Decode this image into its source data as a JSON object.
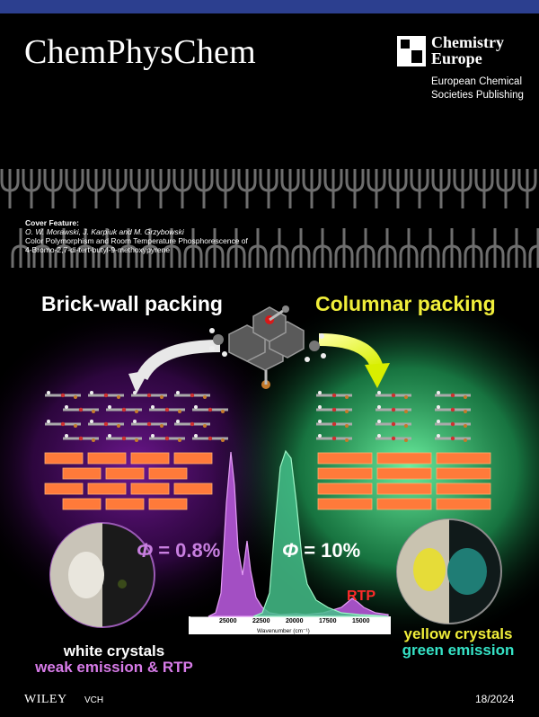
{
  "journal": {
    "title": "ChemPhysChem"
  },
  "publisher_logo": {
    "name_line1": "Chemistry",
    "name_line2": "Europe",
    "sub_line1": "European Chemical",
    "sub_line2": "Societies Publishing"
  },
  "cover": {
    "label": "Cover Feature:",
    "authors": "O. W. Morawski, J. Karpiuk and M. Grzybowski",
    "title_line1": "Color Polymorphism and Room Temperature Phosphorescence of",
    "title_line2": "4-Bromo-2,7-di-tert-butyl-9-methoxypyrene"
  },
  "figure": {
    "left_heading": "Brick-wall packing",
    "right_heading": "Columnar packing",
    "phi_left_value": " = 0.8%",
    "phi_right_value": " = 10%",
    "phi_symbol": "Φ",
    "rtp_label": "RTP",
    "spectrum_ticks": [
      "25000",
      "22500",
      "20000",
      "17500",
      "15000"
    ],
    "spectrum_xlabel": "Wavenumber (cm⁻¹)",
    "left_caption_line1": "white crystals",
    "left_caption_line2": "weak emission & RTP",
    "right_caption_line1": "yellow crystals",
    "right_caption_line2": "green emission"
  },
  "footer": {
    "publisher": "WILEY",
    "imprint": "VCH",
    "issue": "18/2024"
  },
  "colors": {
    "topbar": "#2c3f8f",
    "yellow": "#f0ee3a",
    "purple": "#c87fe0",
    "teal": "#35e2c6",
    "rtp_red": "#ff2a2a",
    "brick": "#ff7a3a"
  }
}
